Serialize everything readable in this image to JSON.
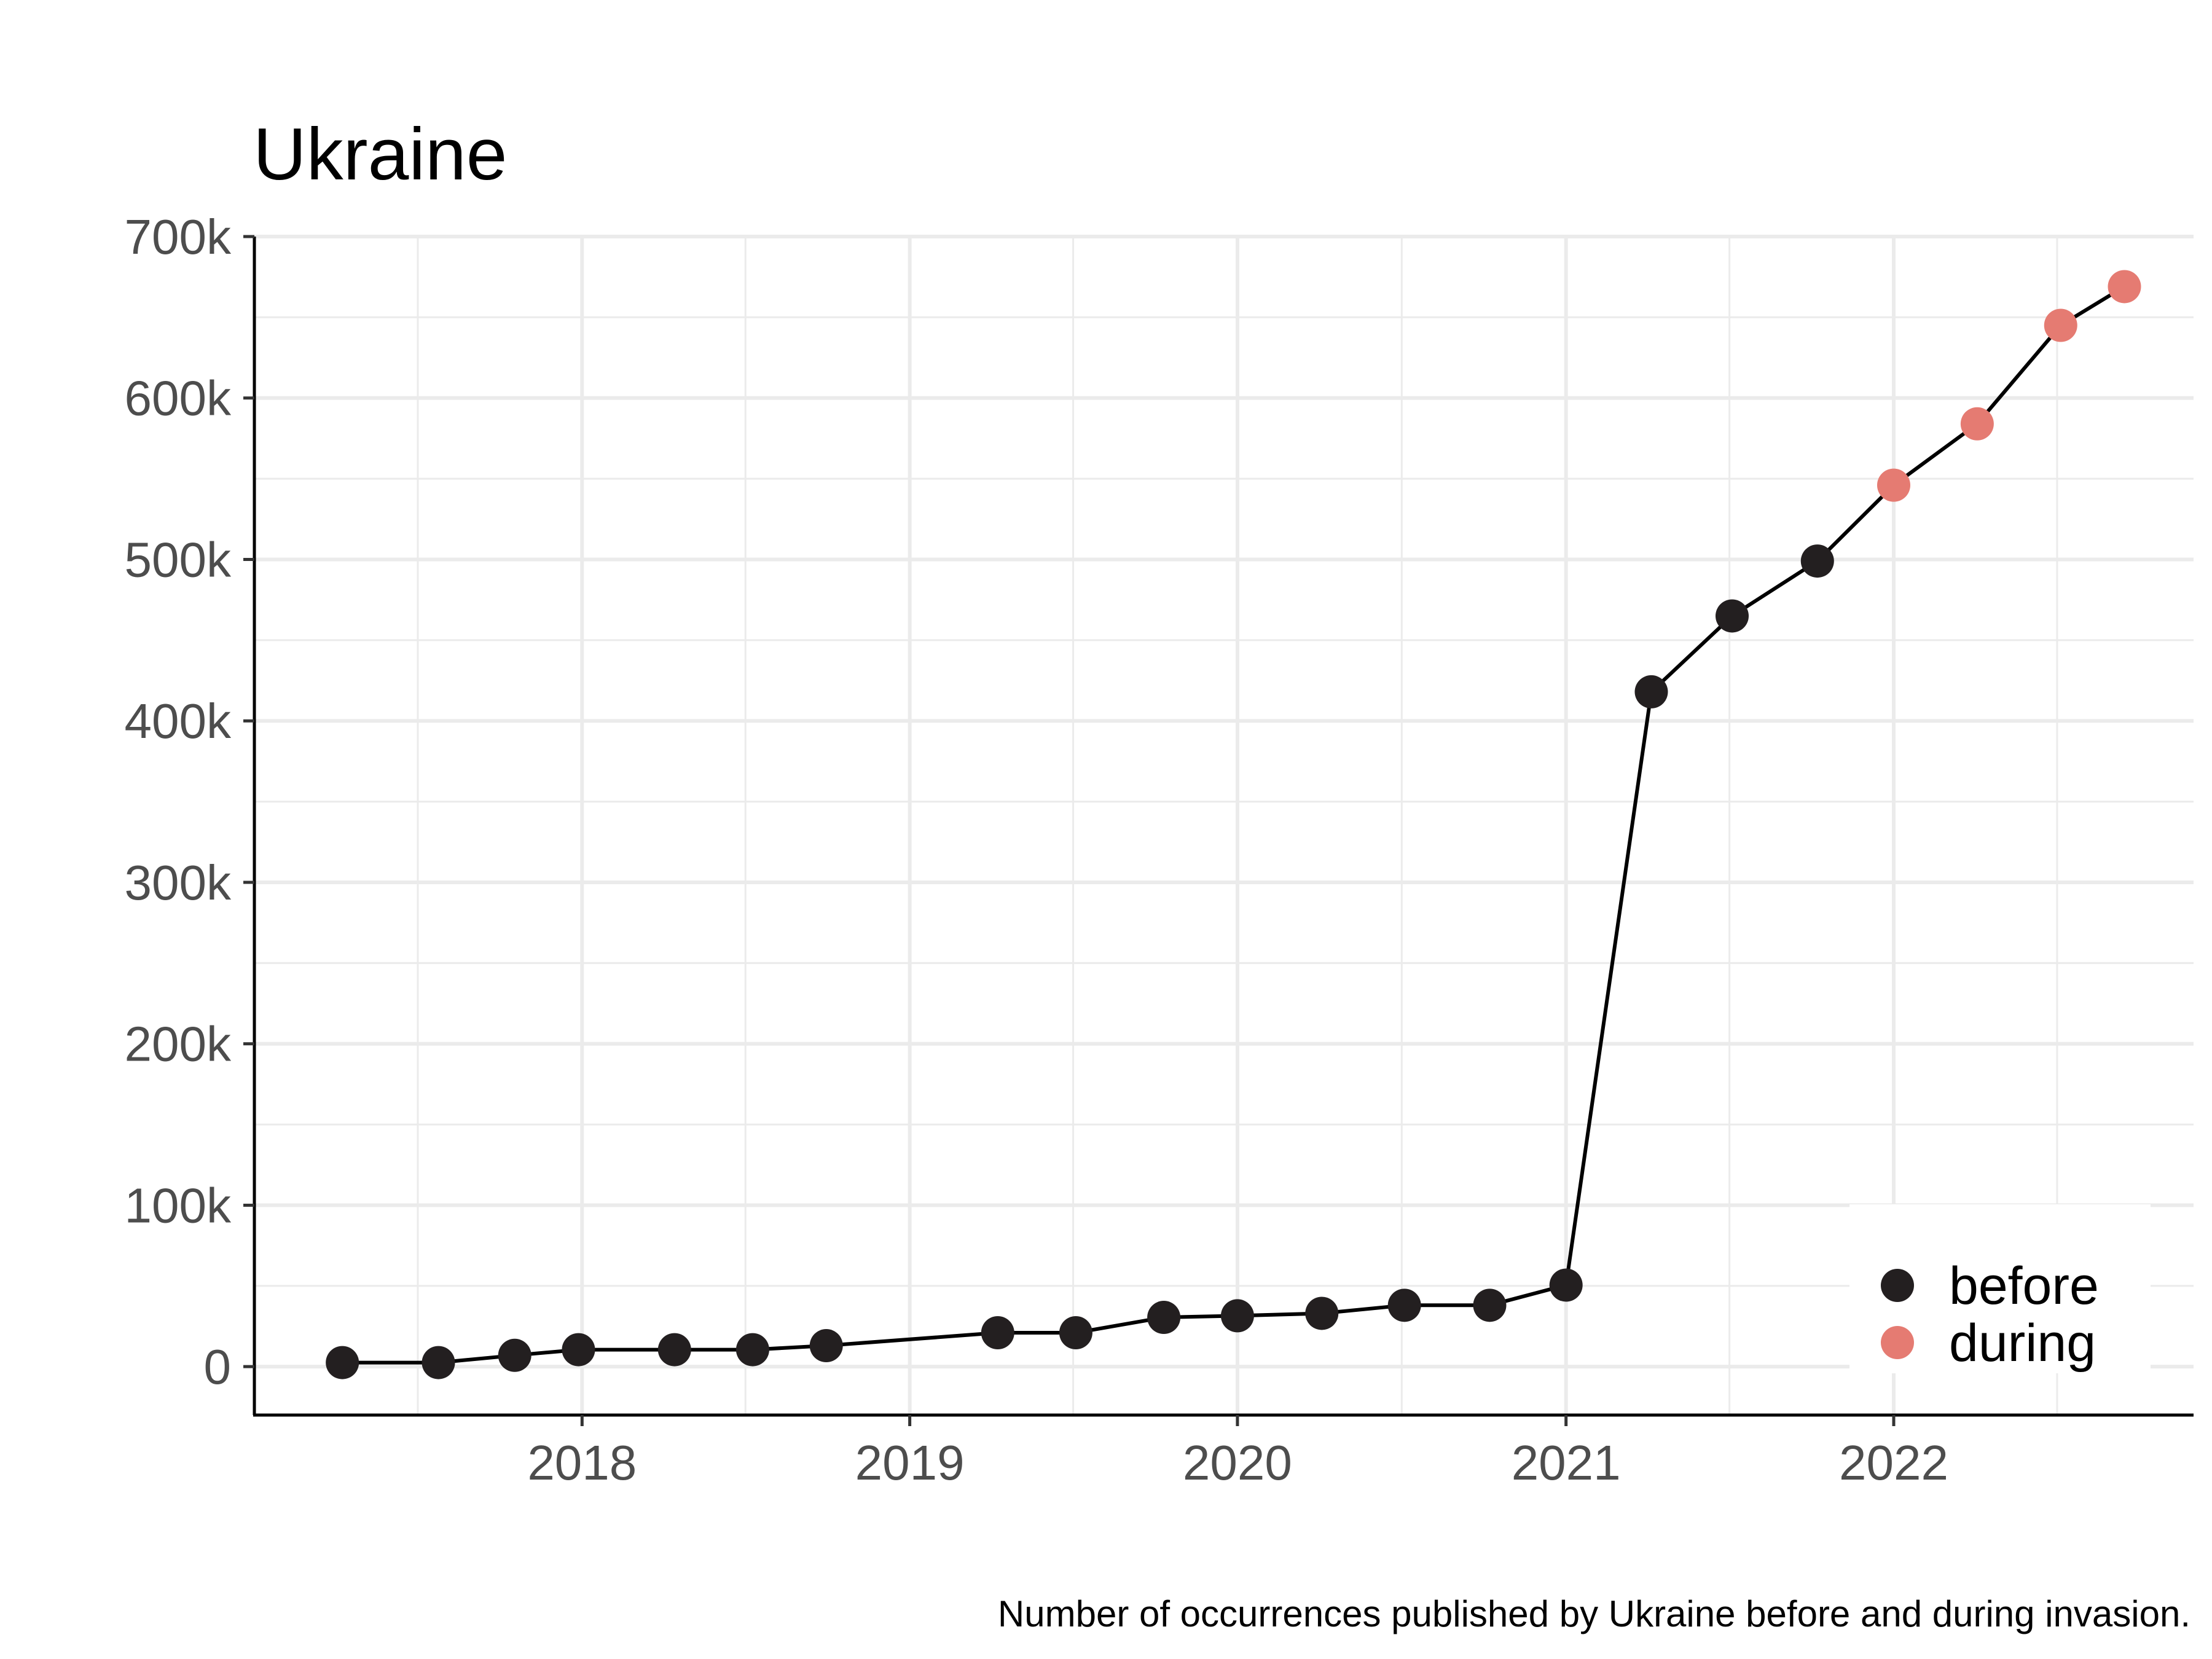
{
  "chart_data": {
    "type": "scatter",
    "title": "Ukraine",
    "caption": "Number of occurrences published by Ukraine before and during invasion.",
    "xlabel": "",
    "ylabel": "",
    "x_range": [
      "2017-01-01",
      "2022-12-01"
    ],
    "y_range": [
      -30000,
      700000
    ],
    "x_ticks": [
      {
        "date": "2018-01-01",
        "label": "2018"
      },
      {
        "date": "2019-01-01",
        "label": "2019"
      },
      {
        "date": "2020-01-01",
        "label": "2020"
      },
      {
        "date": "2021-01-01",
        "label": "2021"
      },
      {
        "date": "2022-01-01",
        "label": "2022"
      }
    ],
    "y_ticks": [
      {
        "value": 0,
        "label": "0"
      },
      {
        "value": 100000,
        "label": "100k"
      },
      {
        "value": 200000,
        "label": "200k"
      },
      {
        "value": 300000,
        "label": "300k"
      },
      {
        "value": 400000,
        "label": "400k"
      },
      {
        "value": 500000,
        "label": "500k"
      },
      {
        "value": 600000,
        "label": "600k"
      },
      {
        "value": 700000,
        "label": "700k"
      }
    ],
    "grid": true,
    "legend_position": "bottom-right",
    "line_color": "#000000",
    "series": [
      {
        "name": "before",
        "color": "#231f20",
        "points": [
          {
            "x": "2017-04-09",
            "y": 2500
          },
          {
            "x": "2017-07-25",
            "y": 2500
          },
          {
            "x": "2017-10-18",
            "y": 7000
          },
          {
            "x": "2017-12-28",
            "y": 10500
          },
          {
            "x": "2018-04-14",
            "y": 10500
          },
          {
            "x": "2018-07-10",
            "y": 10500
          },
          {
            "x": "2018-09-30",
            "y": 13000
          },
          {
            "x": "2019-04-09",
            "y": 21000
          },
          {
            "x": "2019-07-05",
            "y": 21000
          },
          {
            "x": "2019-10-11",
            "y": 30500
          },
          {
            "x": "2020-01-01",
            "y": 31500
          },
          {
            "x": "2020-04-04",
            "y": 33000
          },
          {
            "x": "2020-07-05",
            "y": 38000
          },
          {
            "x": "2020-10-08",
            "y": 38000
          },
          {
            "x": "2021-01-01",
            "y": 50500
          },
          {
            "x": "2021-04-06",
            "y": 418000
          },
          {
            "x": "2021-07-05",
            "y": 465000
          },
          {
            "x": "2021-10-08",
            "y": 499000
          }
        ]
      },
      {
        "name": "during",
        "color": "#e57b72",
        "points": [
          {
            "x": "2022-01-01",
            "y": 546000
          },
          {
            "x": "2022-04-04",
            "y": 584000
          },
          {
            "x": "2022-07-06",
            "y": 645000
          },
          {
            "x": "2022-09-15",
            "y": 669000
          }
        ]
      }
    ]
  }
}
